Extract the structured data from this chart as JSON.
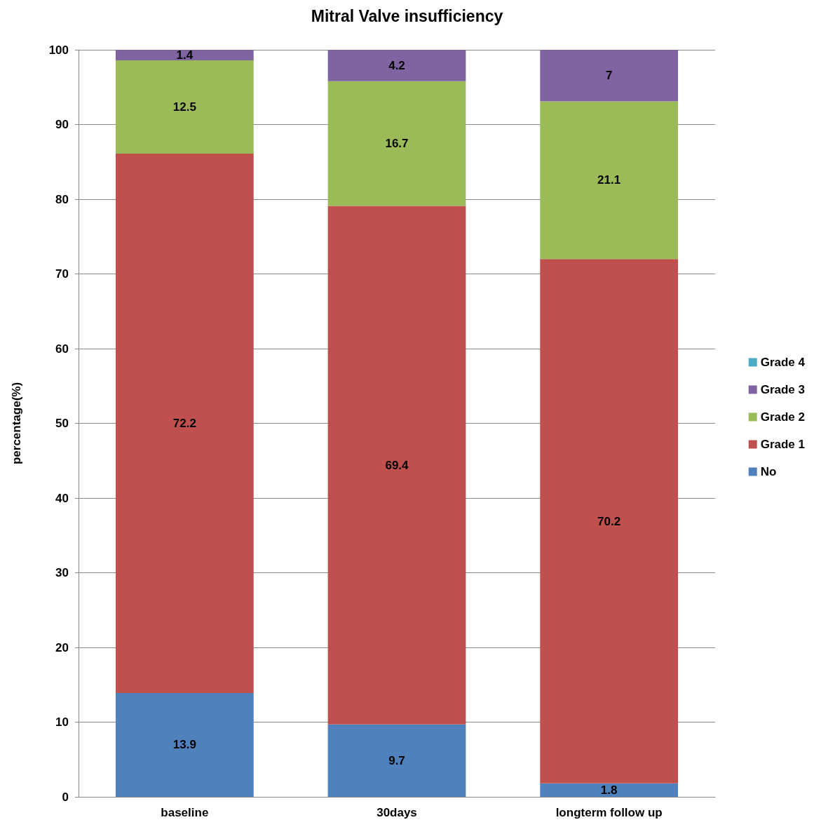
{
  "chart_data": {
    "type": "bar",
    "title": "Mitral Valve insufficiency",
    "ylabel": "percentage(%)",
    "categories": [
      "baseline",
      "30days",
      "longterm follow up"
    ],
    "stacked": true,
    "data_labels": true,
    "grid": "y",
    "legend": "right",
    "ylim": [
      0,
      100
    ],
    "yticks": [
      0,
      10,
      20,
      30,
      40,
      50,
      60,
      70,
      80,
      90,
      100
    ],
    "series": [
      {
        "name": "No",
        "color": "#4f81bd",
        "values": [
          13.9,
          9.7,
          1.8
        ]
      },
      {
        "name": "Grade 1",
        "color": "#c0504d",
        "values": [
          72.2,
          69.4,
          70.2
        ]
      },
      {
        "name": "Grade 2",
        "color": "#9bbb59",
        "values": [
          12.5,
          16.7,
          21.1
        ]
      },
      {
        "name": "Grade 3",
        "color": "#8064a2",
        "values": [
          1.4,
          4.2,
          7
        ]
      },
      {
        "name": "Grade 4",
        "color": "#4bacc6",
        "values": [
          null,
          null,
          null
        ]
      }
    ]
  }
}
